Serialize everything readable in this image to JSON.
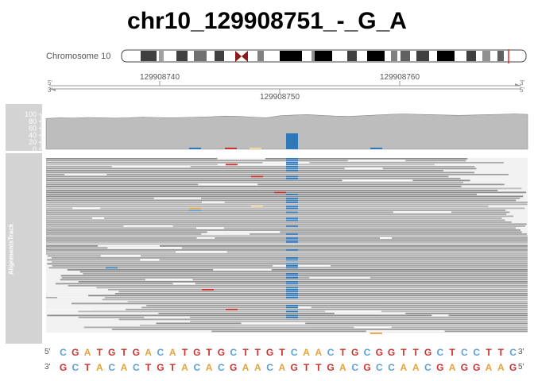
{
  "title": "chr10_129908751_-_G_A",
  "chromosome_label": "Chromosome 10",
  "axis": {
    "ticks": [
      {
        "value": 129908740,
        "label": "129908740"
      },
      {
        "value": 129908760,
        "label": "129908760"
      }
    ],
    "center_label": "129908750",
    "left_top": "5'",
    "left_bottom": "3'",
    "right_top": "3'",
    "right_bottom": "5'"
  },
  "coverage": {
    "y_ticks": [
      "100",
      "80",
      "60",
      "40",
      "20",
      "0"
    ],
    "profile": [
      88,
      90,
      89,
      91,
      90,
      89,
      90,
      92,
      91,
      90,
      91,
      92,
      93,
      95,
      94,
      92,
      90,
      96,
      98,
      99,
      97,
      95,
      94,
      96,
      98,
      100,
      101,
      100,
      99,
      98,
      97,
      98,
      99,
      100,
      101,
      100
    ]
  },
  "alignments_track_label": "AlignmentsTrack",
  "sequence": {
    "top_left_end": "5'",
    "top_right_end": "3'",
    "bottom_left_end": "3'",
    "bottom_right_end": "5'",
    "forward": [
      "C",
      "G",
      "A",
      "T",
      "G",
      "T",
      "G",
      "A",
      "C",
      "A",
      "T",
      "G",
      "T",
      "G",
      "C",
      "T",
      "T",
      "G",
      "T",
      "C",
      "A",
      "A",
      "C",
      "T",
      "G",
      "C",
      "G",
      "G",
      "T",
      "T",
      "G",
      "C",
      "T",
      "C",
      "C",
      "T",
      "T",
      "C"
    ],
    "reverse": [
      "G",
      "C",
      "T",
      "A",
      "C",
      "A",
      "C",
      "T",
      "G",
      "T",
      "A",
      "C",
      "A",
      "C",
      "G",
      "A",
      "A",
      "C",
      "A",
      "G",
      "T",
      "T",
      "G",
      "A",
      "C",
      "G",
      "C",
      "C",
      "A",
      "A",
      "C",
      "G",
      "A",
      "G",
      "G",
      "A",
      "A",
      "G"
    ]
  },
  "colors": {
    "A": "#e8a23a",
    "C": "#5aa0d6",
    "G": "#c9332f",
    "T": "#c9332f",
    "variant": "#2e78b7",
    "coverage_fill": "#bdbdbd",
    "sidebar": "#d3d3d3",
    "highlight_band": "#e0312f"
  }
}
